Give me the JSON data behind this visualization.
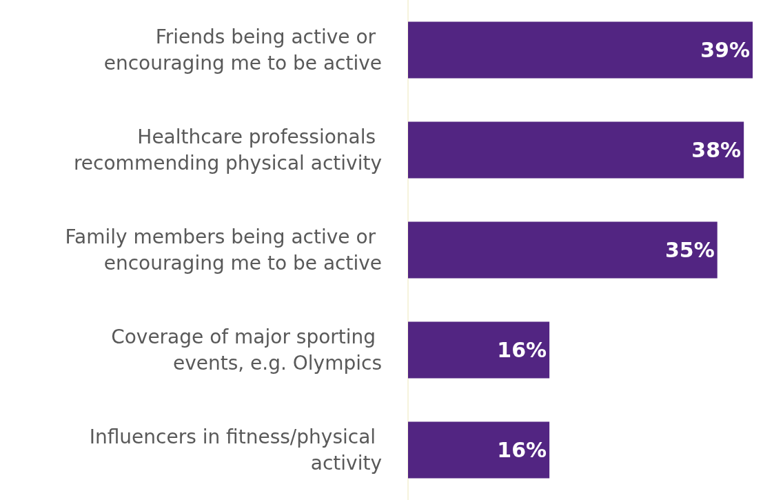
{
  "chart_data": {
    "type": "bar",
    "orientation": "horizontal",
    "categories": [
      "Friends being active or encouraging me to be active",
      "Healthcare professionals recommending physical activity",
      "Family members being active or encouraging me to be active",
      "Coverage of major sporting events, e.g. Olympics",
      "Influencers in fitness/physical activity"
    ],
    "values": [
      39,
      38,
      35,
      16,
      16
    ],
    "value_labels": [
      "39%",
      "38%",
      "35%",
      "16%",
      "16%"
    ],
    "color": "#522582"
  }
}
